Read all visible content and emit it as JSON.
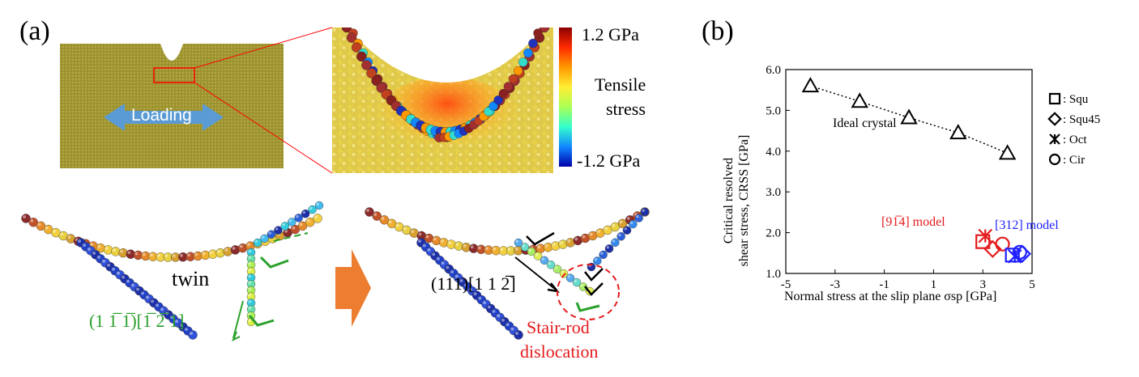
{
  "panels": {
    "a": "(a)",
    "b": "(b)"
  },
  "loading_label": "Loading",
  "colorbar": {
    "max_label": "1.2 GPa",
    "min_label": "-1.2 GPa",
    "title_line1": "Tensile",
    "title_line2": "stress",
    "colors": [
      "#8b0000",
      "#ff2a00",
      "#ff9900",
      "#ffee33",
      "#aaff55",
      "#33ffcc",
      "#1188ff",
      "#0000aa"
    ]
  },
  "bottom": {
    "twin_label": "twin",
    "left_index_label": "(1 1̅ 1̅)[1̅ 2̅ 1]",
    "right_index_label": "(111)[1 1 2̅]",
    "stair_rod_line1": "Stair-rod",
    "stair_rod_line2": "dislocation"
  },
  "colors": {
    "loading_arrow": "#5b9bd5",
    "green_label": "#2aa02a",
    "red_label": "#e41a1c",
    "blue_label": "#1f1fff",
    "orange_arrow": "#ed7d31",
    "specimen": "#9b9130"
  },
  "chart_data": {
    "type": "scatter",
    "xlabel": "Normal stress at the slip plane σsp [GPa]",
    "ylabel_line1": "Critical resolved",
    "ylabel_line2": "shear stress, CRSS [GPa]",
    "xlim": [
      -5,
      5
    ],
    "ylim": [
      1.0,
      6.0
    ],
    "x_ticks": [
      -5,
      -3,
      -1,
      1,
      3,
      5
    ],
    "x_tick_labels": [
      "-5",
      "-3",
      "-1",
      "1",
      "3",
      "5"
    ],
    "y_ticks": [
      1.0,
      2.0,
      3.0,
      4.0,
      5.0,
      6.0
    ],
    "y_tick_labels": [
      "1.0",
      "2.0",
      "3.0",
      "4.0",
      "5.0",
      "6.0"
    ],
    "grid": false,
    "ideal": {
      "label": "Ideal crystal",
      "x": [
        -4,
        -2,
        0,
        2,
        4
      ],
      "y": [
        5.6,
        5.22,
        4.82,
        4.45,
        3.95
      ]
    },
    "series": [
      {
        "group": "914",
        "marker": "square",
        "x": 3.0,
        "y": 1.78
      },
      {
        "group": "914",
        "marker": "diamond",
        "x": 3.4,
        "y": 1.6
      },
      {
        "group": "914",
        "marker": "asterisk",
        "x": 3.1,
        "y": 1.92
      },
      {
        "group": "914",
        "marker": "circle",
        "x": 3.8,
        "y": 1.72
      },
      {
        "group": "312",
        "marker": "square",
        "x": 4.2,
        "y": 1.45
      },
      {
        "group": "312",
        "marker": "diamond",
        "x": 4.6,
        "y": 1.48
      },
      {
        "group": "312",
        "marker": "asterisk",
        "x": 4.3,
        "y": 1.42
      },
      {
        "group": "312",
        "marker": "circle",
        "x": 4.5,
        "y": 1.52
      }
    ],
    "model_labels": {
      "m914": "[91̅4] model",
      "m312": "[312] model"
    },
    "legend": [
      {
        "marker": "square",
        "text": ": Squ"
      },
      {
        "marker": "diamond",
        "text": ": Squ45"
      },
      {
        "marker": "asterisk",
        "text": ": Oct"
      },
      {
        "marker": "circle",
        "text": ": Cir"
      }
    ]
  }
}
